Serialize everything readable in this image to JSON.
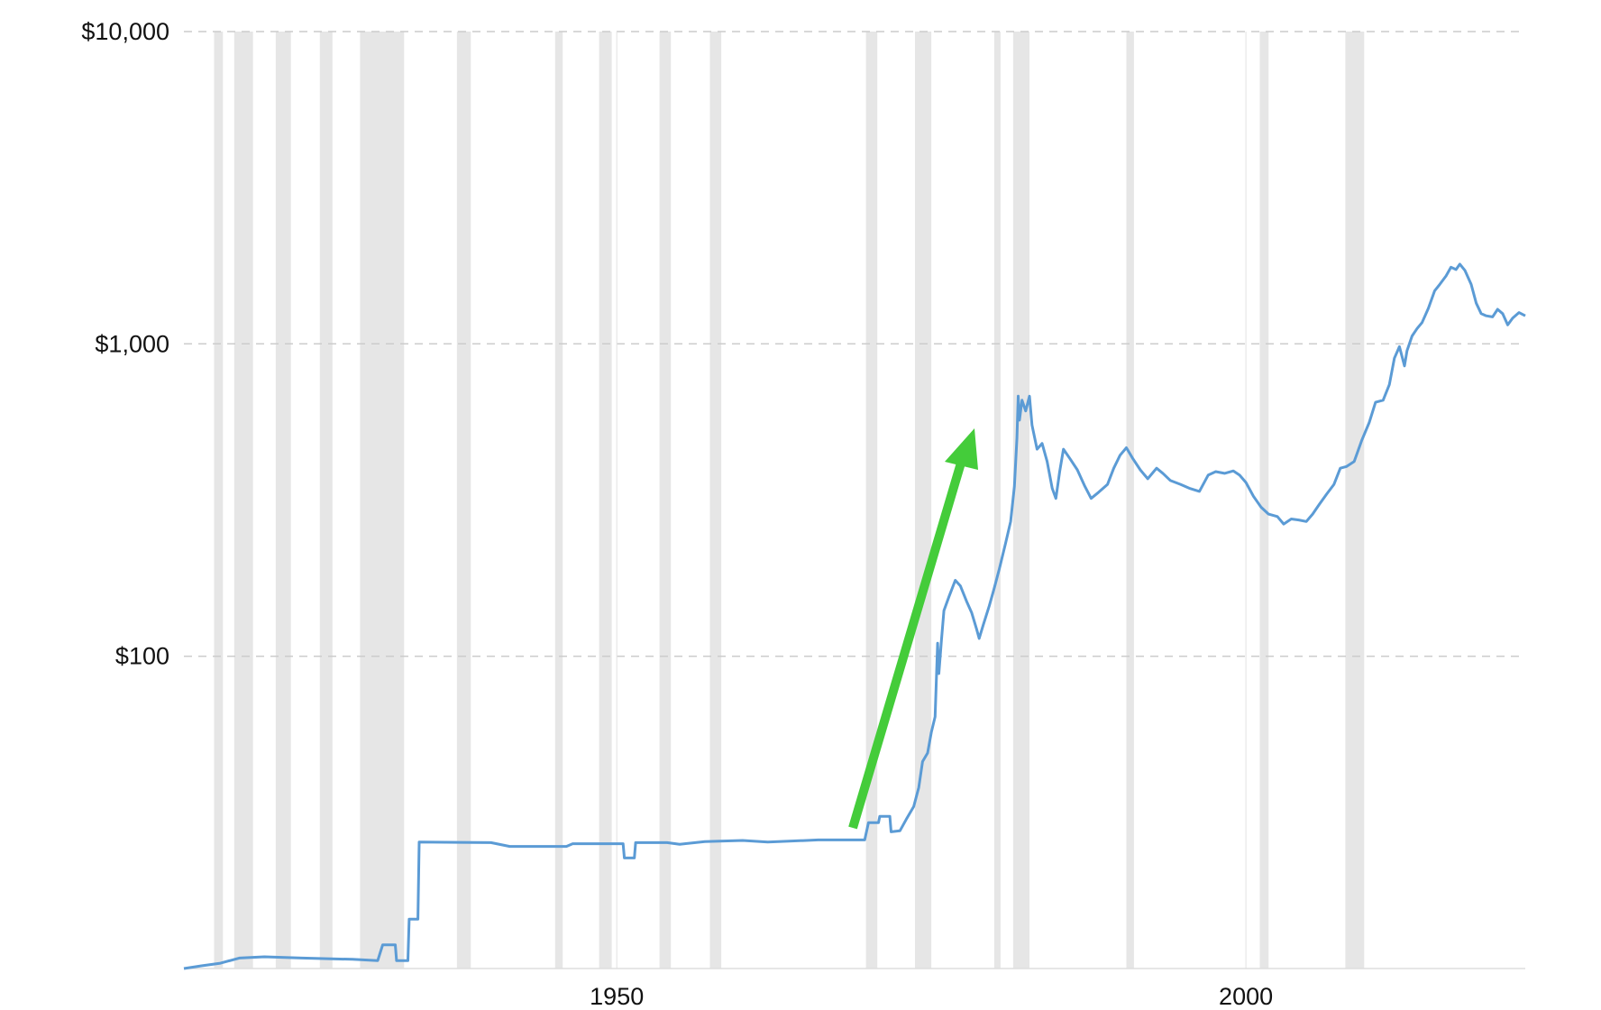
{
  "chart_data": {
    "type": "line",
    "title": "",
    "xlabel": "",
    "ylabel": "",
    "y_scale": "log",
    "ylim": [
      10,
      10000
    ],
    "xlim": [
      1915.6,
      2022.2
    ],
    "y_ticks": [
      {
        "value": 10000,
        "label": "$10,000"
      },
      {
        "value": 1000,
        "label": "$1,000"
      },
      {
        "value": 100,
        "label": "$100"
      }
    ],
    "x_ticks": [
      {
        "value": 1950,
        "label": "1950"
      },
      {
        "value": 2000,
        "label": "2000"
      }
    ],
    "grid": "horizontal dashed",
    "recession_bands": [
      [
        1918.0,
        1918.7
      ],
      [
        1919.6,
        1921.1
      ],
      [
        1922.9,
        1924.1
      ],
      [
        1926.4,
        1927.4
      ],
      [
        1929.6,
        1933.1
      ],
      [
        1937.3,
        1938.4
      ],
      [
        1945.1,
        1945.7
      ],
      [
        1948.6,
        1949.6
      ],
      [
        1953.4,
        1954.3
      ],
      [
        1957.4,
        1958.3
      ],
      [
        1969.8,
        1970.7
      ],
      [
        1973.7,
        1975.0
      ],
      [
        1980.0,
        1980.5
      ],
      [
        1981.5,
        1982.8
      ],
      [
        1990.5,
        1991.1
      ],
      [
        2001.1,
        2001.8
      ],
      [
        2007.9,
        2009.4
      ]
    ],
    "series": [
      {
        "color": "#5b9bd5",
        "points": [
          [
            1915.6,
            10.0
          ],
          [
            1917.0,
            10.2
          ],
          [
            1918.5,
            10.4
          ],
          [
            1920.0,
            10.8
          ],
          [
            1922.0,
            10.9
          ],
          [
            1925.0,
            10.8
          ],
          [
            1929.0,
            10.7
          ],
          [
            1931.0,
            10.6
          ],
          [
            1931.4,
            11.9
          ],
          [
            1932.4,
            11.9
          ],
          [
            1932.5,
            10.6
          ],
          [
            1933.4,
            10.6
          ],
          [
            1933.5,
            14.4
          ],
          [
            1934.2,
            14.4
          ],
          [
            1934.3,
            25.4
          ],
          [
            1940.0,
            25.3
          ],
          [
            1941.5,
            24.6
          ],
          [
            1946.0,
            24.6
          ],
          [
            1946.5,
            25.1
          ],
          [
            1950.5,
            25.1
          ],
          [
            1950.6,
            22.6
          ],
          [
            1951.4,
            22.6
          ],
          [
            1951.5,
            25.3
          ],
          [
            1954.0,
            25.3
          ],
          [
            1955.0,
            25.0
          ],
          [
            1957.0,
            25.5
          ],
          [
            1960.0,
            25.7
          ],
          [
            1962.0,
            25.4
          ],
          [
            1966.0,
            25.8
          ],
          [
            1969.7,
            25.8
          ],
          [
            1970.0,
            29.3
          ],
          [
            1970.8,
            29.3
          ],
          [
            1970.9,
            30.7
          ],
          [
            1971.7,
            30.7
          ],
          [
            1971.8,
            27.4
          ],
          [
            1972.5,
            27.6
          ],
          [
            1973.0,
            30.0
          ],
          [
            1973.6,
            33.0
          ],
          [
            1974.0,
            38.0
          ],
          [
            1974.3,
            46.0
          ],
          [
            1974.7,
            49.0
          ],
          [
            1975.0,
            57.0
          ],
          [
            1975.3,
            64.0
          ],
          [
            1975.5,
            110.0
          ],
          [
            1975.6,
            88.0
          ],
          [
            1975.8,
            112.0
          ],
          [
            1976.0,
            140.0
          ],
          [
            1976.4,
            155.0
          ],
          [
            1976.9,
            175.0
          ],
          [
            1977.3,
            168.0
          ],
          [
            1977.8,
            150.0
          ],
          [
            1978.2,
            138.0
          ],
          [
            1978.6,
            122.0
          ],
          [
            1978.8,
            114.0
          ],
          [
            1979.1,
            125.0
          ],
          [
            1979.6,
            145.0
          ],
          [
            1980.0,
            165.0
          ],
          [
            1980.4,
            190.0
          ],
          [
            1980.9,
            230.0
          ],
          [
            1981.3,
            270.0
          ],
          [
            1981.6,
            350.0
          ],
          [
            1981.8,
            500.0
          ],
          [
            1981.9,
            680.0
          ],
          [
            1982.0,
            570.0
          ],
          [
            1982.2,
            660.0
          ],
          [
            1982.5,
            610.0
          ],
          [
            1982.8,
            680.0
          ],
          [
            1983.0,
            550.0
          ],
          [
            1983.4,
            460.0
          ],
          [
            1983.8,
            480.0
          ],
          [
            1984.2,
            420.0
          ],
          [
            1984.6,
            345.0
          ],
          [
            1984.9,
            320.0
          ],
          [
            1985.2,
            390.0
          ],
          [
            1985.5,
            460.0
          ],
          [
            1986.0,
            430.0
          ],
          [
            1986.6,
            395.0
          ],
          [
            1987.2,
            350.0
          ],
          [
            1987.7,
            320.0
          ],
          [
            1988.3,
            335.0
          ],
          [
            1989.0,
            355.0
          ],
          [
            1989.5,
            400.0
          ],
          [
            1990.0,
            440.0
          ],
          [
            1990.5,
            465.0
          ],
          [
            1991.0,
            430.0
          ],
          [
            1991.6,
            395.0
          ],
          [
            1992.2,
            370.0
          ],
          [
            1992.9,
            400.0
          ],
          [
            1993.4,
            385.0
          ],
          [
            1994.0,
            365.0
          ],
          [
            1994.8,
            355.0
          ],
          [
            1995.5,
            345.0
          ],
          [
            1996.3,
            337.0
          ],
          [
            1997.0,
            380.0
          ],
          [
            1997.6,
            390.0
          ],
          [
            1998.3,
            385.0
          ],
          [
            1999.0,
            392.0
          ],
          [
            1999.5,
            380.0
          ],
          [
            2000.0,
            360.0
          ],
          [
            2000.6,
            325.0
          ],
          [
            2001.2,
            300.0
          ],
          [
            2001.8,
            285.0
          ],
          [
            2002.5,
            280.0
          ],
          [
            2003.0,
            265.0
          ],
          [
            2003.6,
            275.0
          ],
          [
            2004.2,
            273.0
          ],
          [
            2004.8,
            270.0
          ],
          [
            2005.3,
            285.0
          ],
          [
            2005.8,
            305.0
          ],
          [
            2006.4,
            330.0
          ],
          [
            2007.0,
            355.0
          ],
          [
            2007.5,
            400.0
          ],
          [
            2008.0,
            405.0
          ],
          [
            2008.6,
            420.0
          ],
          [
            2009.2,
            490.0
          ],
          [
            2009.8,
            560.0
          ],
          [
            2010.3,
            650.0
          ],
          [
            2010.9,
            660.0
          ],
          [
            2011.4,
            740.0
          ],
          [
            2011.8,
            900.0
          ],
          [
            2012.2,
            980.0
          ],
          [
            2012.6,
            850.0
          ],
          [
            2012.8,
            950.0
          ],
          [
            2013.2,
            1060.0
          ],
          [
            2013.6,
            1120.0
          ],
          [
            2014.0,
            1170.0
          ],
          [
            2014.5,
            1300.0
          ],
          [
            2015.0,
            1480.0
          ],
          [
            2015.4,
            1550.0
          ],
          [
            2015.9,
            1650.0
          ],
          [
            2016.3,
            1760.0
          ],
          [
            2016.7,
            1730.0
          ],
          [
            2017.0,
            1800.0
          ],
          [
            2017.4,
            1720.0
          ],
          [
            2017.9,
            1550.0
          ],
          [
            2018.3,
            1350.0
          ],
          [
            2018.7,
            1250.0
          ],
          [
            2019.1,
            1230.0
          ],
          [
            2019.6,
            1220.0
          ],
          [
            2020.0,
            1290.0
          ],
          [
            2020.4,
            1250.0
          ],
          [
            2020.8,
            1150.0
          ],
          [
            2021.2,
            1210.0
          ],
          [
            2021.7,
            1260.0
          ],
          [
            2022.2,
            1230.0
          ]
        ]
      }
    ]
  },
  "annotations": {
    "arrow_color": "#44cc3a"
  }
}
